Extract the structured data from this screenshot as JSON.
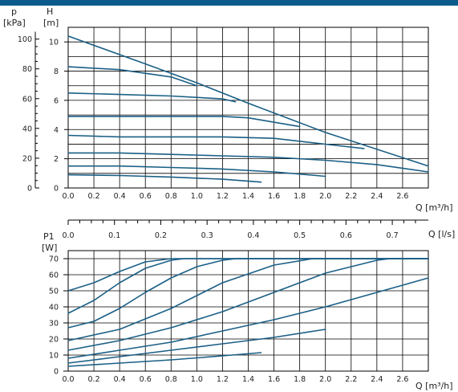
{
  "colors": {
    "accent": "#0d5a8c",
    "curve": "#1a5f86",
    "grid": "#000000"
  },
  "chart_data": [
    {
      "type": "line",
      "y_left_label_top": "p",
      "y_left_label_unit": "[kPa]",
      "y_right_label_top": "H",
      "y_right_label_unit": "[m]",
      "xlabel": "Q [m³/h]",
      "x_ticks": [
        "0.0",
        "0.2",
        "0.4",
        "0.6",
        "0.8",
        "1.0",
        "1.2",
        "1.4",
        "1.6",
        "1.8",
        "2.0",
        "2.2",
        "2.4",
        "2.6"
      ],
      "xlim": [
        0,
        2.8
      ],
      "kpa_ticks": [
        "0",
        "20",
        "40",
        "60",
        "80",
        "100"
      ],
      "m_ticks": [
        "0",
        "2",
        "4",
        "6",
        "8",
        "10"
      ],
      "ylim_m": [
        0,
        11
      ],
      "grid": true,
      "series": [
        {
          "x": [
            0.0,
            0.6,
            1.0,
            1.4,
            2.0,
            2.8
          ],
          "y": [
            10.4,
            8.5,
            7.2,
            5.8,
            3.8,
            1.5
          ]
        },
        {
          "x": [
            0.0,
            0.4,
            0.8,
            1.0
          ],
          "y": [
            8.3,
            8.1,
            7.6,
            7.0
          ]
        },
        {
          "x": [
            0.0,
            0.4,
            0.8,
            1.2,
            1.3
          ],
          "y": [
            6.5,
            6.4,
            6.3,
            6.1,
            5.9
          ]
        },
        {
          "x": [
            0.0,
            0.4,
            0.8,
            1.2,
            1.4,
            1.8
          ],
          "y": [
            4.9,
            4.9,
            4.9,
            4.9,
            4.8,
            4.2
          ]
        },
        {
          "x": [
            0.0,
            0.4,
            0.8,
            1.2,
            1.6,
            2.0,
            2.3
          ],
          "y": [
            3.6,
            3.5,
            3.5,
            3.5,
            3.4,
            3.0,
            2.7
          ]
        },
        {
          "x": [
            0.0,
            0.4,
            0.8,
            1.2,
            1.6,
            2.0,
            2.4,
            2.8
          ],
          "y": [
            2.4,
            2.4,
            2.3,
            2.2,
            2.1,
            1.9,
            1.6,
            1.1
          ]
        },
        {
          "x": [
            0.0,
            0.4,
            0.8,
            1.2,
            1.6,
            2.0
          ],
          "y": [
            1.5,
            1.5,
            1.4,
            1.3,
            1.1,
            0.8
          ]
        },
        {
          "x": [
            0.0,
            0.4,
            0.8,
            1.2,
            1.5
          ],
          "y": [
            0.9,
            0.85,
            0.75,
            0.6,
            0.4
          ]
        }
      ]
    },
    {
      "type": "axis",
      "xlabel": "Q [l/s]",
      "x_ticks": [
        "0.0",
        "0.1",
        "0.2",
        "0.3",
        "0.4",
        "0.5",
        "0.6",
        "0.7"
      ],
      "xlim": [
        0,
        0.7778
      ]
    },
    {
      "type": "line",
      "ylabel_top": "P1",
      "ylabel_unit": "[W]",
      "xlabel": "Q [m³/h]",
      "x_ticks": [
        "0.0",
        "0.2",
        "0.4",
        "0.6",
        "0.8",
        "1.0",
        "1.2",
        "1.4",
        "1.6",
        "1.8",
        "2.0",
        "2.2",
        "2.4",
        "2.6"
      ],
      "y_ticks": [
        "0",
        "10",
        "20",
        "30",
        "40",
        "50",
        "60",
        "70"
      ],
      "xlim": [
        0,
        2.8
      ],
      "ylim": [
        0,
        75
      ],
      "grid": true,
      "series": [
        {
          "x": [
            0.0,
            0.2,
            0.4,
            0.6,
            0.8,
            2.8
          ],
          "y": [
            50,
            55,
            62,
            68,
            70,
            70
          ]
        },
        {
          "x": [
            0.0,
            0.2,
            0.4,
            0.6,
            0.8,
            0.9,
            2.8
          ],
          "y": [
            36,
            44,
            55,
            64,
            69,
            70,
            70
          ]
        },
        {
          "x": [
            0.0,
            0.2,
            0.4,
            0.6,
            0.8,
            1.0,
            1.2,
            1.3,
            2.8
          ],
          "y": [
            27,
            31,
            39,
            49,
            58,
            65,
            69,
            70,
            70
          ]
        },
        {
          "x": [
            0.0,
            0.4,
            0.8,
            1.2,
            1.6,
            1.9,
            2.8
          ],
          "y": [
            19,
            26,
            39,
            55,
            66,
            70,
            70
          ]
        },
        {
          "x": [
            0.0,
            0.4,
            0.8,
            1.2,
            1.6,
            2.0,
            2.4,
            2.5,
            2.8
          ],
          "y": [
            13,
            19,
            27,
            37,
            49,
            61,
            69,
            70,
            70
          ]
        },
        {
          "x": [
            0.0,
            0.4,
            0.8,
            1.2,
            1.6,
            2.0,
            2.4,
            2.8
          ],
          "y": [
            8,
            13,
            18,
            25,
            32,
            40,
            49,
            58
          ]
        },
        {
          "x": [
            0.0,
            0.4,
            0.8,
            1.2,
            1.6,
            2.0
          ],
          "y": [
            5,
            9,
            13,
            17,
            21,
            26
          ]
        },
        {
          "x": [
            0.0,
            0.4,
            0.8,
            1.2,
            1.5
          ],
          "y": [
            3,
            5,
            7,
            9.5,
            11.5
          ]
        }
      ]
    }
  ]
}
